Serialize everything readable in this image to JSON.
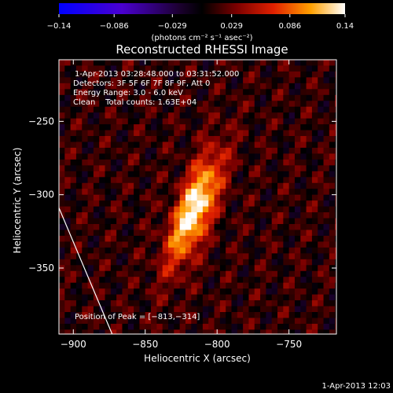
{
  "chart_data": {
    "type": "heatmap",
    "title": "Reconstructed RHESSI Image",
    "xlabel": "Heliocentric X (arcsec)",
    "ylabel": "Heliocentric Y (arcsec)",
    "xlim": [
      -910,
      -717
    ],
    "ylim": [
      -395,
      -208
    ],
    "x_ticks": [
      -900,
      -850,
      -800,
      -750
    ],
    "y_ticks": [
      -250,
      -300,
      -350
    ],
    "x_tick_labels": [
      "−900",
      "−850",
      "−800",
      "−750"
    ],
    "y_tick_labels": [
      "−250",
      "−300",
      "−350"
    ],
    "colorbar": {
      "min": -0.14,
      "max": 0.14,
      "tick_values": [
        -0.14,
        -0.086,
        -0.029,
        0.029,
        0.086,
        0.14
      ],
      "tick_labels": [
        "−0.14",
        "−0.086",
        "−0.029",
        "0.029",
        "0.086",
        "0.14"
      ],
      "unit_label": "(photons cm⁻² s⁻¹ asec⁻²)"
    },
    "annotations": {
      "time_range": "1-Apr-2013 03:28:48.000 to 03:31:52.000",
      "detectors": "Detectors: 3F 5F 6F 7F 8F 9F, Att 0",
      "energy_range": "Energy Range: 3.0 - 6.0 keV",
      "algorithm_counts": "Clean    Total counts: 1.63E+04",
      "peak_position": "Position of Peak = [−813,−314]"
    },
    "peak": {
      "x": -813,
      "y": -314
    },
    "limb_line": [
      [
        -910,
        -309
      ],
      [
        -873,
        -395
      ]
    ]
  },
  "timestamp": "1-Apr-2013 12:03"
}
